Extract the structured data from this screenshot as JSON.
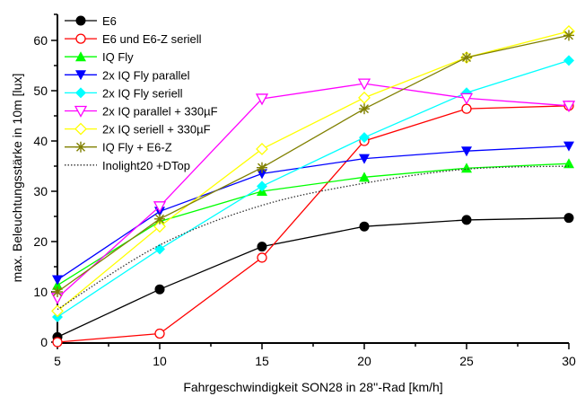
{
  "chart_data": {
    "type": "line",
    "title": "",
    "xlabel": "Fahrgeschwindigkeit SON28 in 28''-Rad [km/h]",
    "ylabel": "max. Beleuchtungsstärke in 10m [lux]",
    "xlim": [
      5,
      30
    ],
    "ylim": [
      0,
      63
    ],
    "x": [
      5,
      10,
      15,
      20,
      25,
      30
    ],
    "x_ticks": [
      5,
      10,
      15,
      20,
      25,
      30
    ],
    "x_tick_labels": [
      "5",
      "10",
      "15",
      "20",
      "25",
      "30"
    ],
    "x_minor_ticks": [
      7.5,
      12.5,
      17.5,
      22.5,
      27.5
    ],
    "y_ticks": [
      0,
      10,
      20,
      30,
      40,
      50,
      60
    ],
    "y_tick_labels": [
      "0",
      "10",
      "20",
      "30",
      "40",
      "50",
      "60"
    ],
    "y_minor_ticks": [
      5,
      15,
      25,
      35,
      45,
      55
    ],
    "grid": false,
    "legend_position": "top-left",
    "series": [
      {
        "name": "E6",
        "color": "#000000",
        "marker": "filled-circle",
        "line": "solid",
        "values": [
          1.0,
          10.5,
          19.0,
          23.0,
          24.3,
          24.7
        ]
      },
      {
        "name": "E6 und E6-Z seriell",
        "color": "#ff0000",
        "marker": "open-circle",
        "line": "solid",
        "values": [
          0.0,
          1.7,
          16.8,
          40.0,
          46.4,
          47.0
        ]
      },
      {
        "name": "IQ Fly",
        "color": "#00ff00",
        "marker": "filled-triangle-up",
        "line": "solid",
        "values": [
          11.3,
          24.0,
          30.0,
          32.8,
          34.6,
          35.5
        ]
      },
      {
        "name": "2x IQ Fly parallel",
        "color": "#0000ff",
        "marker": "filled-triangle-down",
        "line": "solid",
        "values": [
          12.4,
          26.0,
          33.5,
          36.5,
          38.0,
          39.0
        ]
      },
      {
        "name": "2x IQ Fly seriell",
        "color": "#00ffff",
        "marker": "filled-diamond",
        "line": "solid",
        "values": [
          5.0,
          18.5,
          31.0,
          40.7,
          49.6,
          56.0
        ]
      },
      {
        "name": "2x IQ parallel + 330µF",
        "color": "#ff00ff",
        "marker": "open-triangle-down",
        "line": "solid",
        "values": [
          8.8,
          27.0,
          48.4,
          51.4,
          48.5,
          47.0
        ]
      },
      {
        "name": "2x IQ seriell + 330µF",
        "color": "#ffff00",
        "marker": "open-diamond",
        "line": "solid",
        "values": [
          6.2,
          23.0,
          38.4,
          48.6,
          56.6,
          61.8
        ]
      },
      {
        "name": "IQ Fly + E6-Z",
        "color": "#808000",
        "marker": "asterisk",
        "line": "solid",
        "values": [
          10.0,
          24.5,
          34.7,
          46.4,
          56.6,
          61.0
        ]
      },
      {
        "name": "Inolight20 +DTop",
        "color": "#333333",
        "marker": "none",
        "line": "dotted",
        "values": [
          6.5,
          19.3,
          27.2,
          31.6,
          34.4,
          35.0
        ]
      }
    ]
  }
}
